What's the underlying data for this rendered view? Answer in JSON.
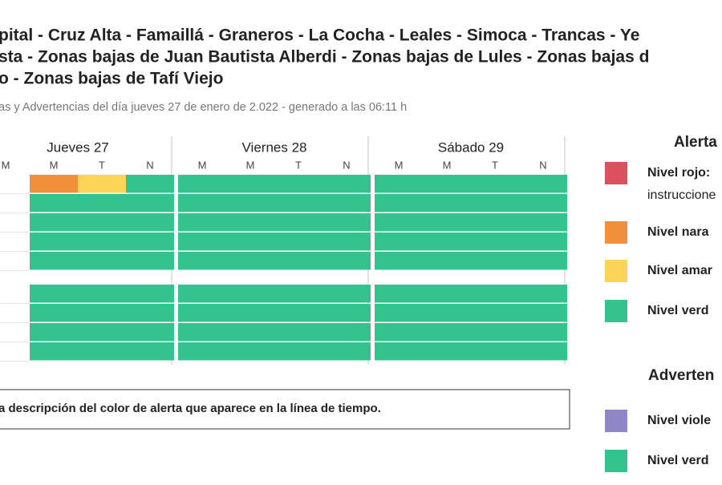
{
  "header": {
    "title_lines": [
      "pital - Cruz Alta - Famaillá - Graneros - La Cocha - Leales - Simoca - Trancas - Ye",
      "sta - Zonas bajas de Juan Bautista Alberdi - Zonas bajas de Lules - Zonas bajas d",
      "o - Zonas bajas de Tafí Viejo"
    ],
    "subtitle": "as y Advertencias del día jueves 27 de enero de 2.022 - generado a las 06:11 h"
  },
  "timeline": {
    "days": [
      {
        "label": "Jueves 27",
        "periods": [
          "M",
          "M",
          "T",
          "N"
        ]
      },
      {
        "label": "Viernes 28",
        "periods": [
          "M",
          "M",
          "T",
          "N"
        ]
      },
      {
        "label": "Sábado 29",
        "periods": [
          "M",
          "M",
          "T",
          "N"
        ]
      }
    ],
    "groups": [
      {
        "rows": [
          [
            null,
            "#f0903a",
            "#fbd458",
            "#34c38f",
            "#34c38f",
            "#34c38f",
            "#34c38f",
            "#34c38f",
            "#34c38f",
            "#34c38f",
            "#34c38f",
            "#34c38f"
          ],
          [
            null,
            "#34c38f",
            "#34c38f",
            "#34c38f",
            "#34c38f",
            "#34c38f",
            "#34c38f",
            "#34c38f",
            "#34c38f",
            "#34c38f",
            "#34c38f",
            "#34c38f"
          ],
          [
            null,
            "#34c38f",
            "#34c38f",
            "#34c38f",
            "#34c38f",
            "#34c38f",
            "#34c38f",
            "#34c38f",
            "#34c38f",
            "#34c38f",
            "#34c38f",
            "#34c38f"
          ],
          [
            null,
            "#34c38f",
            "#34c38f",
            "#34c38f",
            "#34c38f",
            "#34c38f",
            "#34c38f",
            "#34c38f",
            "#34c38f",
            "#34c38f",
            "#34c38f",
            "#34c38f"
          ],
          [
            null,
            "#34c38f",
            "#34c38f",
            "#34c38f",
            "#34c38f",
            "#34c38f",
            "#34c38f",
            "#34c38f",
            "#34c38f",
            "#34c38f",
            "#34c38f",
            "#34c38f"
          ]
        ]
      },
      {
        "rows": [
          [
            null,
            "#34c38f",
            "#34c38f",
            "#34c38f",
            "#34c38f",
            "#34c38f",
            "#34c38f",
            "#34c38f",
            "#34c38f",
            "#34c38f",
            "#34c38f",
            "#34c38f"
          ],
          [
            null,
            "#34c38f",
            "#34c38f",
            "#34c38f",
            "#34c38f",
            "#34c38f",
            "#34c38f",
            "#34c38f",
            "#34c38f",
            "#34c38f",
            "#34c38f",
            "#34c38f"
          ],
          [
            null,
            "#34c38f",
            "#34c38f",
            "#34c38f",
            "#34c38f",
            "#34c38f",
            "#34c38f",
            "#34c38f",
            "#34c38f",
            "#34c38f",
            "#34c38f",
            "#34c38f"
          ],
          [
            null,
            "#34c38f",
            "#34c38f",
            "#34c38f",
            "#34c38f",
            "#34c38f",
            "#34c38f",
            "#34c38f",
            "#34c38f",
            "#34c38f",
            "#34c38f",
            "#34c38f"
          ]
        ]
      }
    ],
    "note": "a descripción del color de alerta que aparece en la línea de tiempo."
  },
  "legend": {
    "alerts": {
      "title": "Alerta",
      "items": [
        {
          "color": "#d9505e",
          "label": "Nivel rojo:",
          "description": "instruccione"
        },
        {
          "color": "#f0903a",
          "label": "Nivel nara"
        },
        {
          "color": "#fbd458",
          "label": "Nivel amar"
        },
        {
          "color": "#34c38f",
          "label": "Nivel verd"
        }
      ]
    },
    "warnings": {
      "title": "Adverten",
      "items": [
        {
          "color": "#8f86c6",
          "label": "Nivel viole"
        },
        {
          "color": "#34c38f",
          "label": "Nivel verd"
        }
      ]
    }
  }
}
